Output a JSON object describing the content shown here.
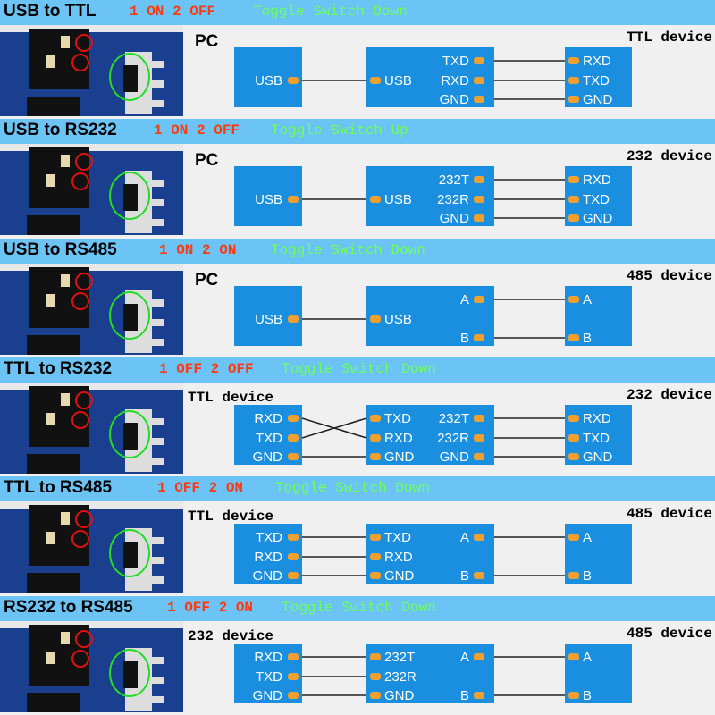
{
  "colors": {
    "header": "#6cc3f5",
    "box": "#1a8fe0",
    "pin": "#f0a030",
    "config": "#ff3a10",
    "toggle": "#6bff5a",
    "pcb": "#1b3f8f"
  },
  "sections": [
    {
      "title": "USB to TTL",
      "config": "1 ON 2 OFF",
      "toggle": "Toggle Switch Down",
      "left_device": "PC",
      "right_device": "TTL device",
      "box1": [
        "",
        "USB",
        ""
      ],
      "box2_left": [
        "",
        "USB",
        ""
      ],
      "box2_right": [
        "TXD",
        "RXD",
        "GND"
      ],
      "box3": [
        "RXD",
        "TXD",
        "GND"
      ],
      "crossed": false
    },
    {
      "title": "USB to RS232",
      "config": "1 ON 2 OFF",
      "toggle": "Toggle Switch Up",
      "left_device": "PC",
      "right_device": "232 device",
      "box1": [
        "",
        "USB",
        ""
      ],
      "box2_left": [
        "",
        "USB",
        ""
      ],
      "box2_right": [
        "232T",
        "232R",
        "GND"
      ],
      "box3": [
        "RXD",
        "TXD",
        "GND"
      ],
      "crossed": false
    },
    {
      "title": "USB to RS485",
      "config": "1 ON 2 ON",
      "toggle": "Toggle Switch Down",
      "left_device": "PC",
      "right_device": "485 device",
      "box1": [
        "",
        "USB",
        ""
      ],
      "box2_left": [
        "",
        "USB",
        ""
      ],
      "box2_right": [
        "A",
        "",
        "B"
      ],
      "box3": [
        "A",
        "",
        "B"
      ],
      "crossed": false
    },
    {
      "title": "TTL to RS232",
      "config": "1 OFF 2 OFF",
      "toggle": "Toggle Switch Down",
      "left_device": "TTL device",
      "right_device": "232 device",
      "box1": [
        "RXD",
        "TXD",
        "GND"
      ],
      "box2_left": [
        "TXD",
        "RXD",
        "GND"
      ],
      "box2_right": [
        "232T",
        "232R",
        "GND"
      ],
      "box3": [
        "RXD",
        "TXD",
        "GND"
      ],
      "crossed": true
    },
    {
      "title": "TTL to RS485",
      "config": "1 OFF 2 ON",
      "toggle": "Toggle Switch Down",
      "left_device": "TTL device",
      "right_device": "485 device",
      "box1": [
        "TXD",
        "RXD",
        "GND"
      ],
      "box2_left": [
        "TXD",
        "RXD",
        "GND"
      ],
      "box2_right": [
        "A",
        "",
        "B"
      ],
      "box3": [
        "A",
        "",
        "B"
      ],
      "crossed": false
    },
    {
      "title": "RS232 to RS485",
      "config": "1 OFF 2 ON",
      "toggle": "Toggle Switch Down",
      "left_device": "232 device",
      "right_device": "485 device",
      "box1": [
        "RXD",
        "TXD",
        "GND"
      ],
      "box2_left": [
        "232T",
        "232R",
        "GND"
      ],
      "box2_right": [
        "A",
        "",
        "B"
      ],
      "box3": [
        "A",
        "",
        "B"
      ],
      "crossed": false
    }
  ]
}
